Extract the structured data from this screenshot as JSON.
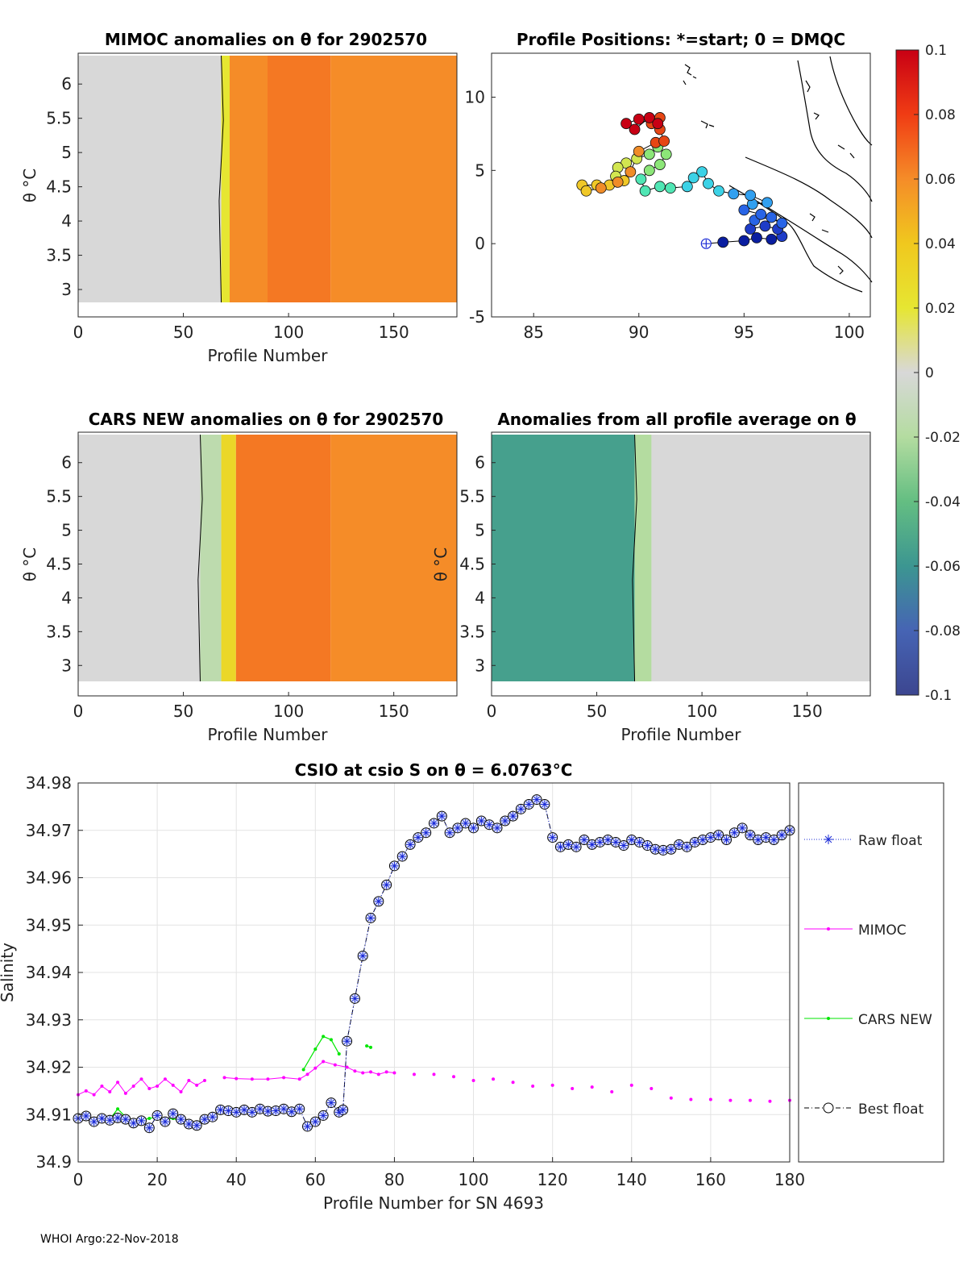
{
  "colors": {
    "heat_orange": "#ff9a10",
    "heat_orange_dark": "#ff8a10",
    "neutral_gray": "#d9d9d9",
    "pale_green": "#d5ecb0",
    "teal": "#3aa08a",
    "raw_float": "#1a2ad6",
    "mimoc": "#ff00ff",
    "cars_new": "#00e600",
    "best_float": "#000000"
  },
  "footer": {
    "credit": "WHOI Argo:22-Nov-2018"
  },
  "colorbar": {
    "ticks": [
      "0.1",
      "0.08",
      "0.06",
      "0.04",
      "0.02",
      "0",
      "-0.02",
      "-0.04",
      "-0.06",
      "-0.08",
      "-0.1"
    ],
    "stops": [
      "#c80014",
      "#f03c14",
      "#f58c28",
      "#f0c81e",
      "#e6e632",
      "#d8d8d8",
      "#b4dca0",
      "#64be82",
      "#3c9691",
      "#4664b4",
      "#3c4690"
    ]
  },
  "chart_data": [
    {
      "id": "mimoc",
      "type": "heatmap",
      "title": "MIMOC anomalies on θ  for 2902570",
      "xlabel": "Profile Number",
      "ylabel": "θ °C",
      "xlim": [
        0,
        180
      ],
      "ylim": [
        2.6,
        6.45
      ],
      "xticks": [
        "0",
        "50",
        "100",
        "150"
      ],
      "yticks": [
        "6",
        "5.5",
        "5",
        "4.5",
        "4",
        "3.5",
        "3"
      ],
      "bands": [
        {
          "x0": 0,
          "x1": 68,
          "value": 0.0
        },
        {
          "x0": 68,
          "x1": 72,
          "value": 0.02
        },
        {
          "x0": 72,
          "x1": 90,
          "value": 0.06
        },
        {
          "x0": 90,
          "x1": 120,
          "value": 0.065
        },
        {
          "x0": 120,
          "x1": 180,
          "value": 0.06
        }
      ]
    },
    {
      "id": "map",
      "type": "scatter",
      "title": "Profile Positions: *=start; 0 = DMQC",
      "xlim": [
        83,
        101
      ],
      "ylim": [
        -5,
        13
      ],
      "xticks": [
        "85",
        "90",
        "95",
        "100"
      ],
      "yticks": [
        "10",
        "5",
        "0",
        "-5"
      ],
      "track": [
        [
          93.2,
          0.0
        ],
        [
          94.0,
          0.1
        ],
        [
          95.0,
          0.2
        ],
        [
          95.6,
          0.4
        ],
        [
          96.3,
          0.3
        ],
        [
          96.8,
          0.5
        ],
        [
          96.6,
          1.0
        ],
        [
          96.0,
          1.2
        ],
        [
          95.3,
          1.0
        ],
        [
          95.5,
          1.6
        ],
        [
          96.3,
          1.8
        ],
        [
          96.8,
          1.4
        ],
        [
          95.8,
          2.0
        ],
        [
          95.0,
          2.3
        ],
        [
          95.4,
          2.7
        ],
        [
          96.1,
          2.8
        ],
        [
          95.3,
          3.3
        ],
        [
          94.5,
          3.4
        ],
        [
          93.8,
          3.6
        ],
        [
          93.3,
          4.1
        ],
        [
          93.0,
          4.9
        ],
        [
          92.6,
          4.5
        ],
        [
          92.3,
          3.9
        ],
        [
          91.5,
          3.8
        ],
        [
          91.0,
          3.9
        ],
        [
          90.3,
          3.6
        ],
        [
          90.1,
          4.4
        ],
        [
          90.5,
          5.0
        ],
        [
          91.0,
          5.4
        ],
        [
          91.3,
          6.1
        ],
        [
          90.9,
          6.6
        ],
        [
          90.5,
          6.1
        ],
        [
          89.9,
          5.8
        ],
        [
          89.4,
          5.5
        ],
        [
          89.0,
          5.2
        ],
        [
          88.9,
          4.6
        ],
        [
          89.3,
          4.3
        ],
        [
          88.6,
          4.0
        ],
        [
          88.0,
          4.0
        ],
        [
          87.3,
          4.0
        ],
        [
          87.5,
          3.6
        ],
        [
          88.2,
          3.8
        ],
        [
          89.0,
          4.2
        ],
        [
          89.6,
          4.9
        ],
        [
          90.0,
          6.3
        ],
        [
          90.8,
          6.9
        ],
        [
          91.2,
          7.0
        ],
        [
          91.0,
          7.8
        ],
        [
          91.0,
          8.6
        ],
        [
          90.6,
          8.2
        ],
        [
          90.0,
          8.5
        ],
        [
          89.4,
          8.2
        ],
        [
          89.8,
          7.8
        ],
        [
          90.5,
          8.6
        ],
        [
          90.9,
          8.2
        ]
      ]
    },
    {
      "id": "cars",
      "type": "heatmap",
      "title": "CARS NEW anomalies on θ for 2902570",
      "xlabel": "Profile Number",
      "ylabel": "θ °C",
      "xlim": [
        0,
        180
      ],
      "ylim": [
        2.55,
        6.45
      ],
      "xticks": [
        "0",
        "50",
        "100",
        "150"
      ],
      "yticks": [
        "6",
        "5.5",
        "5",
        "4.5",
        "4",
        "3.5",
        "3"
      ],
      "bands": [
        {
          "x0": 0,
          "x1": 58,
          "value": 0.0
        },
        {
          "x0": 58,
          "x1": 68,
          "value": -0.015
        },
        {
          "x0": 68,
          "x1": 75,
          "value": 0.03
        },
        {
          "x0": 75,
          "x1": 120,
          "value": 0.065
        },
        {
          "x0": 120,
          "x1": 180,
          "value": 0.06
        }
      ]
    },
    {
      "id": "allavg",
      "type": "heatmap",
      "title": "Anomalies from all profile average on θ",
      "xlabel": "Profile Number",
      "ylabel": "θ °C",
      "xlim": [
        0,
        180
      ],
      "ylim": [
        2.55,
        6.45
      ],
      "xticks": [
        "0",
        "50",
        "100",
        "150"
      ],
      "yticks": [
        "6",
        "5.5",
        "5",
        "4.5",
        "4",
        "3.5",
        "3"
      ],
      "bands": [
        {
          "x0": 0,
          "x1": 68,
          "value": -0.055
        },
        {
          "x0": 68,
          "x1": 76,
          "value": -0.02
        },
        {
          "x0": 76,
          "x1": 180,
          "value": 0.0
        }
      ]
    },
    {
      "id": "csio",
      "type": "line",
      "title": "CSIO at csio S on θ = 6.0763°C",
      "xlabel": "Profile Number for SN 4693",
      "ylabel": "Salinity",
      "xlim": [
        0,
        180
      ],
      "ylim": [
        34.9,
        34.98
      ],
      "xticks": [
        "0",
        "20",
        "40",
        "60",
        "80",
        "100",
        "120",
        "140",
        "160",
        "180"
      ],
      "yticks": [
        "34.98",
        "34.97",
        "34.96",
        "34.95",
        "34.94",
        "34.93",
        "34.92",
        "34.91",
        "34.9"
      ],
      "legend": [
        "Raw float",
        "MIMOC",
        "CARS NEW",
        "Best float"
      ],
      "series": [
        {
          "name": "Raw float",
          "x": [
            0,
            2,
            4,
            6,
            8,
            10,
            12,
            14,
            16,
            18,
            20,
            22,
            24,
            26,
            28,
            30,
            32,
            34,
            36,
            38,
            40,
            42,
            44,
            46,
            48,
            50,
            52,
            54,
            56,
            58,
            60,
            62,
            64,
            66,
            67,
            68,
            70,
            72,
            74,
            76,
            78,
            80,
            82,
            84,
            86,
            88,
            90,
            92,
            94,
            96,
            98,
            100,
            102,
            104,
            106,
            108,
            110,
            112,
            114,
            116,
            118,
            120,
            122,
            124,
            126,
            128,
            130,
            132,
            134,
            136,
            138,
            140,
            142,
            144,
            146,
            148,
            150,
            152,
            154,
            156,
            158,
            160,
            162,
            164,
            166,
            168,
            170,
            172,
            174,
            176,
            178,
            180
          ],
          "y": [
            34.9092,
            34.9097,
            34.9085,
            34.9092,
            34.9088,
            34.9093,
            34.909,
            34.9082,
            34.9087,
            34.9072,
            34.9098,
            34.9085,
            34.9102,
            34.909,
            34.908,
            34.9077,
            34.909,
            34.9095,
            34.911,
            34.9108,
            34.9105,
            34.911,
            34.9105,
            34.9112,
            34.9107,
            34.9108,
            34.9112,
            34.9106,
            34.9112,
            34.9075,
            34.9085,
            34.9098,
            34.9125,
            34.9105,
            34.911,
            34.9255,
            34.9345,
            34.9435,
            34.9515,
            34.955,
            34.9585,
            34.9625,
            34.9645,
            34.967,
            34.9685,
            34.9695,
            34.9715,
            34.973,
            34.9695,
            34.9705,
            34.9715,
            34.9705,
            34.972,
            34.9712,
            34.9705,
            34.972,
            34.973,
            34.9745,
            34.9755,
            34.9765,
            34.9755,
            34.9685,
            34.9665,
            34.967,
            34.9665,
            34.968,
            34.967,
            34.9675,
            34.968,
            34.9675,
            34.9668,
            34.968,
            34.9675,
            34.9668,
            34.966,
            34.9658,
            34.966,
            34.967,
            34.9665,
            34.9675,
            34.968,
            34.9685,
            34.969,
            34.968,
            34.9695,
            34.9705,
            34.969,
            34.968,
            34.9685,
            34.968,
            34.969,
            34.97
          ]
        },
        {
          "name": "MIMOC",
          "x": [
            0,
            2,
            4,
            6,
            8,
            10,
            12,
            14,
            16,
            18,
            20,
            22,
            24,
            26,
            28,
            30,
            32,
            37,
            40,
            44,
            48,
            52,
            56,
            58,
            60,
            62,
            65,
            68,
            70,
            72,
            74,
            76,
            78,
            80,
            85,
            90,
            95,
            100,
            105,
            110,
            115,
            120,
            125,
            130,
            135,
            140,
            145,
            150,
            155,
            160,
            165,
            170,
            175,
            180
          ],
          "y": [
            34.9142,
            34.915,
            34.9142,
            34.916,
            34.9148,
            34.9168,
            34.9145,
            34.916,
            34.9175,
            34.9155,
            34.916,
            34.9175,
            34.9162,
            34.9148,
            34.9172,
            34.9162,
            34.9172,
            34.9178,
            34.9176,
            34.9175,
            34.9175,
            34.9178,
            34.9175,
            34.9185,
            34.9198,
            34.9212,
            34.9205,
            34.92,
            34.9192,
            34.9188,
            34.919,
            34.9185,
            34.919,
            34.9188,
            34.9185,
            34.9185,
            34.918,
            34.9172,
            34.9175,
            34.9168,
            34.916,
            34.9162,
            34.9155,
            34.9158,
            34.9148,
            34.9162,
            34.9155,
            34.9135,
            34.9132,
            34.9132,
            34.913,
            34.913,
            34.9128,
            34.913
          ]
        },
        {
          "name": "CARS NEW",
          "x": [
            4,
            6,
            8,
            10,
            12,
            14,
            16,
            18,
            20,
            22,
            24,
            26,
            28,
            30,
            32,
            57,
            60,
            62,
            64,
            66,
            73,
            74
          ],
          "y": [
            34.9092,
            34.9095,
            34.909,
            34.9112,
            34.9095,
            34.908,
            34.9088,
            34.9092,
            34.9095,
            34.909,
            34.9092,
            34.9085,
            34.9077,
            34.9082,
            34.9092,
            34.9195,
            34.9238,
            34.9265,
            34.9258,
            34.9228,
            34.9245,
            34.9242
          ]
        },
        {
          "name": "Best float",
          "x": [
            0,
            2,
            4,
            6,
            8,
            10,
            12,
            14,
            16,
            18,
            20,
            22,
            24,
            26,
            28,
            30,
            32,
            34,
            36,
            38,
            40,
            42,
            44,
            46,
            48,
            50,
            52,
            54,
            56,
            58,
            60,
            62,
            64,
            66,
            67,
            68,
            70,
            72,
            74,
            76,
            78,
            80,
            82,
            84,
            86,
            88,
            90,
            92,
            94,
            96,
            98,
            100,
            102,
            104,
            106,
            108,
            110,
            112,
            114,
            116,
            118,
            120,
            122,
            124,
            126,
            128,
            130,
            132,
            134,
            136,
            138,
            140,
            142,
            144,
            146,
            148,
            150,
            152,
            154,
            156,
            158,
            160,
            162,
            164,
            166,
            168,
            170,
            172,
            174,
            176,
            178,
            180
          ],
          "y": [
            34.9092,
            34.9097,
            34.9085,
            34.9092,
            34.9088,
            34.9093,
            34.909,
            34.9082,
            34.9087,
            34.9072,
            34.9098,
            34.9085,
            34.9102,
            34.909,
            34.908,
            34.9077,
            34.909,
            34.9095,
            34.911,
            34.9108,
            34.9105,
            34.911,
            34.9105,
            34.9112,
            34.9107,
            34.9108,
            34.9112,
            34.9106,
            34.9112,
            34.9075,
            34.9085,
            34.9098,
            34.9125,
            34.9105,
            34.911,
            34.9255,
            34.9345,
            34.9435,
            34.9515,
            34.955,
            34.9585,
            34.9625,
            34.9645,
            34.967,
            34.9685,
            34.9695,
            34.9715,
            34.973,
            34.9695,
            34.9705,
            34.9715,
            34.9705,
            34.972,
            34.9712,
            34.9705,
            34.972,
            34.973,
            34.9745,
            34.9755,
            34.9765,
            34.9755,
            34.9685,
            34.9665,
            34.967,
            34.9665,
            34.968,
            34.967,
            34.9675,
            34.968,
            34.9675,
            34.9668,
            34.968,
            34.9675,
            34.9668,
            34.966,
            34.9658,
            34.966,
            34.967,
            34.9665,
            34.9675,
            34.968,
            34.9685,
            34.969,
            34.968,
            34.9695,
            34.9705,
            34.969,
            34.968,
            34.9685,
            34.968,
            34.969,
            34.97
          ]
        }
      ]
    }
  ]
}
